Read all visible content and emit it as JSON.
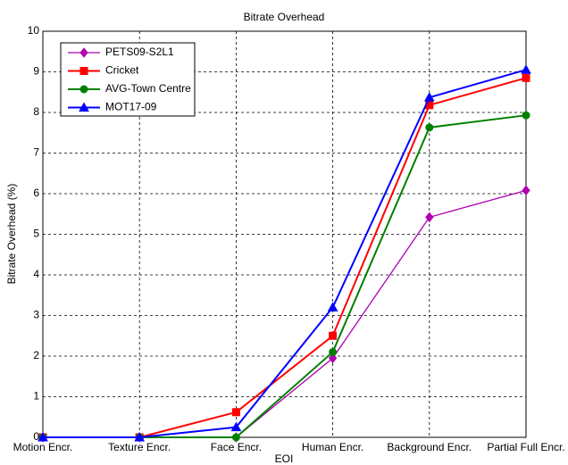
{
  "chart_data": {
    "type": "line",
    "title": "Bitrate Overhead",
    "x_label": "EOI",
    "y_label": "Bitrate Overhead (%)",
    "categories": [
      "Motion Encr.",
      "Texture Encr.",
      "Face Encr.",
      "Human Encr.",
      "Background Encr.",
      "Partial Full Encr."
    ],
    "ylim": [
      0,
      10
    ],
    "yticks": [
      0,
      1,
      2,
      3,
      4,
      5,
      6,
      7,
      8,
      9,
      10
    ],
    "grid": true,
    "legend": "upper left",
    "series": [
      {
        "name": "PETS09-S2L1",
        "color": "#b000b0",
        "marker": "diamond",
        "width": 1.3,
        "values": [
          0,
          0,
          0,
          1.95,
          5.42,
          6.08
        ]
      },
      {
        "name": "Cricket",
        "color": "#ff0000",
        "marker": "square",
        "width": 2,
        "values": [
          0,
          0,
          0.62,
          2.5,
          8.18,
          8.85
        ]
      },
      {
        "name": "AVG-Town Centre",
        "color": "#008000",
        "marker": "circle",
        "width": 2,
        "values": [
          0,
          0,
          0,
          2.1,
          7.63,
          7.93
        ]
      },
      {
        "name": "MOT17-09",
        "color": "#0000ff",
        "marker": "triangle",
        "width": 2,
        "values": [
          0,
          0,
          0.25,
          3.2,
          8.37,
          9.05
        ]
      }
    ]
  }
}
